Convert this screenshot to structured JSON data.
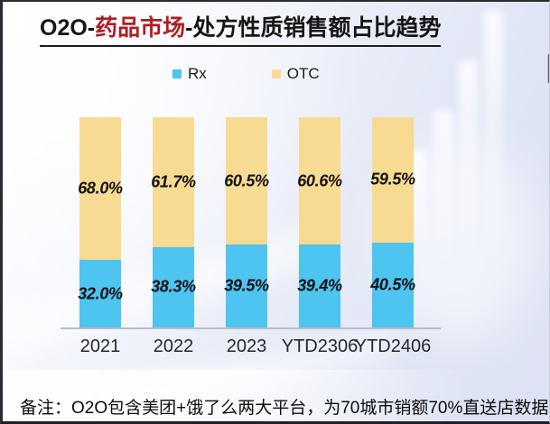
{
  "title": {
    "prefix": "O2O-",
    "highlight": "药品市场",
    "suffix": "-处方性质销售额占比趋势",
    "highlight_color": "#b11d22"
  },
  "legend": {
    "items": [
      {
        "label": "Rx",
        "color": "#4ec4f0"
      },
      {
        "label": "OTC",
        "color": "#f8db92"
      }
    ]
  },
  "chart_data": {
    "type": "bar",
    "subtype": "stacked-percent",
    "title": "O2O-药品市场-处方性质销售额占比趋势",
    "categories": [
      "2021",
      "2022",
      "2023",
      "YTD2306",
      "YTD2406"
    ],
    "series": [
      {
        "name": "Rx",
        "color": "#4ec4f0",
        "values": [
          32.0,
          38.3,
          39.5,
          39.4,
          40.5
        ]
      },
      {
        "name": "OTC",
        "color": "#f8db92",
        "values": [
          68.0,
          61.7,
          60.5,
          60.6,
          59.5
        ]
      }
    ],
    "value_suffix": "%",
    "ylim": [
      0,
      100
    ],
    "grid": false,
    "legend_position": "top"
  },
  "footer": {
    "note": "备注：O2O包含美团+饿了么两大平台，为70城市销额70%直送店数据"
  }
}
